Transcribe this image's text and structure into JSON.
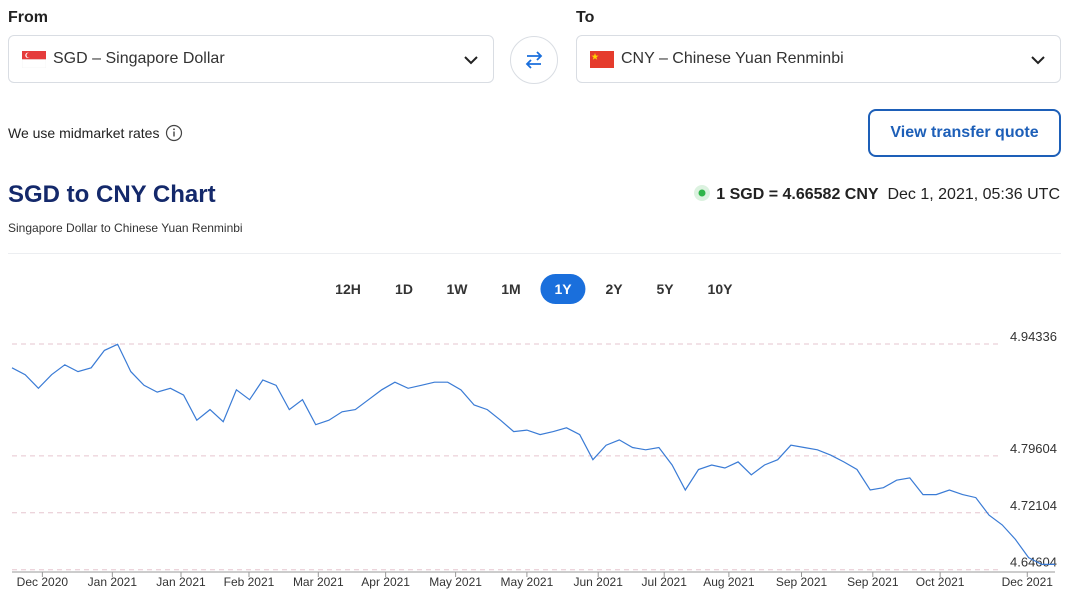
{
  "from": {
    "label": "From",
    "currency": "SGD – Singapore Dollar"
  },
  "to": {
    "label": "To",
    "currency": "CNY – Chinese Yuan Renminbi"
  },
  "rates_note": "We use midmarket rates",
  "quote_button": "View transfer quote",
  "heading": {
    "title": "SGD to CNY Chart",
    "subtitle": "Singapore Dollar to Chinese Yuan Renminbi"
  },
  "rate": {
    "text": "1 SGD = 4.66582 CNY",
    "time": "Dec 1, 2021, 05:36 UTC"
  },
  "ranges": [
    "12H",
    "1D",
    "1W",
    "1M",
    "1Y",
    "2Y",
    "5Y",
    "10Y"
  ],
  "active_range": 4,
  "chart_data": {
    "type": "line",
    "color": "#3a7bd5",
    "grid": true,
    "values": [
      4.912,
      4.903,
      4.885,
      4.903,
      4.916,
      4.907,
      4.912,
      4.935,
      4.943,
      4.907,
      4.889,
      4.88,
      4.885,
      4.876,
      4.843,
      4.857,
      4.841,
      4.883,
      4.87,
      4.896,
      4.889,
      4.857,
      4.87,
      4.837,
      4.843,
      4.854,
      4.857,
      4.87,
      4.883,
      4.893,
      4.885,
      4.889,
      4.893,
      4.893,
      4.883,
      4.863,
      4.857,
      4.843,
      4.828,
      4.83,
      4.824,
      4.828,
      4.833,
      4.824,
      4.791,
      4.81,
      4.817,
      4.807,
      4.804,
      4.807,
      4.784,
      4.751,
      4.778,
      4.784,
      4.78,
      4.788,
      4.771,
      4.784,
      4.791,
      4.81,
      4.807,
      4.804,
      4.797,
      4.788,
      4.778,
      4.751,
      4.754,
      4.764,
      4.767,
      4.745,
      4.745,
      4.751,
      4.745,
      4.741,
      4.718,
      4.705,
      4.686,
      4.662,
      4.653,
      4.653
    ],
    "xlim": [
      0,
      79
    ],
    "xticks": [
      {
        "value": 2.3,
        "label": "Dec 2020"
      },
      {
        "value": 7.6,
        "label": "Jan 2021"
      },
      {
        "value": 12.8,
        "label": "Jan 2021"
      },
      {
        "value": 17.95,
        "label": "Feb 2021"
      },
      {
        "value": 23.2,
        "label": "Mar 2021"
      },
      {
        "value": 28.3,
        "label": "Apr 2021"
      },
      {
        "value": 33.6,
        "label": "May 2021"
      },
      {
        "value": 39,
        "label": "May 2021"
      },
      {
        "value": 44.4,
        "label": "Jun 2021"
      },
      {
        "value": 49.4,
        "label": "Jul 2021"
      },
      {
        "value": 54.3,
        "label": "Aug 2021"
      },
      {
        "value": 59.8,
        "label": "Sep 2021"
      },
      {
        "value": 65.2,
        "label": "Sep 2021"
      },
      {
        "value": 70.3,
        "label": "Oct 2021"
      },
      {
        "value": 76.9,
        "label": "Dec 2021"
      }
    ],
    "ylim": [
      4.643,
      4.975
    ],
    "yticks": [
      4.64604,
      4.72104,
      4.79604,
      4.94336
    ]
  }
}
